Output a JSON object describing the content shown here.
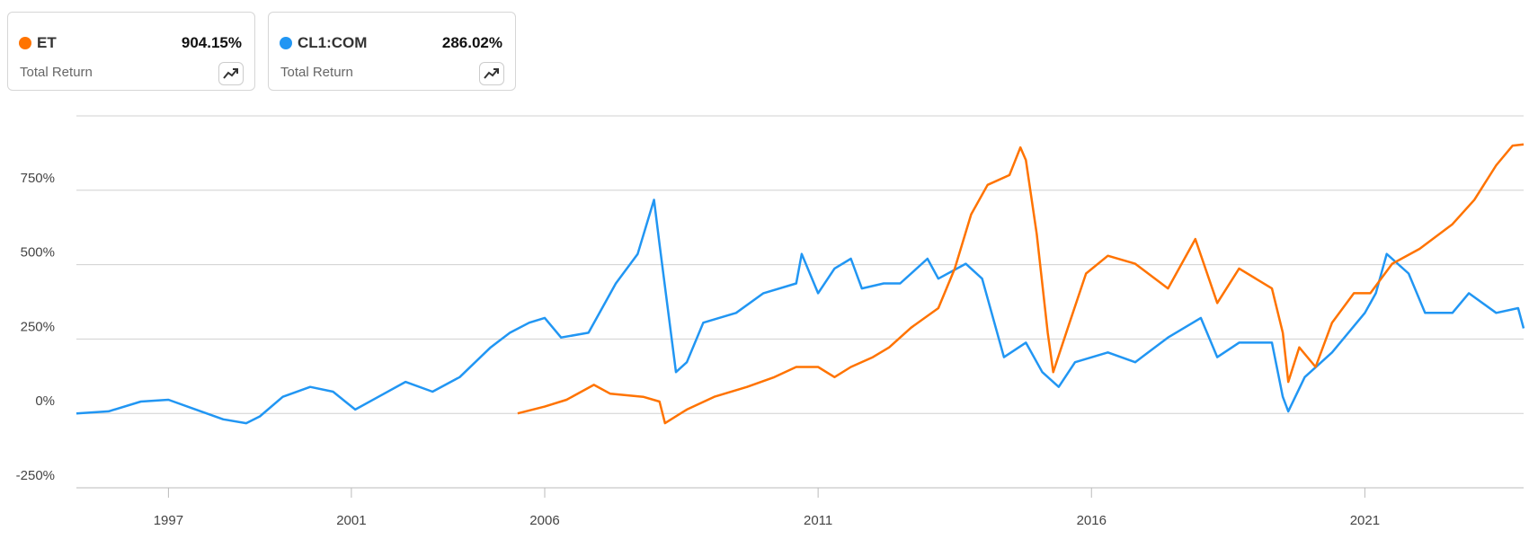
{
  "chart_data": {
    "type": "line",
    "metric_label": "Total Return",
    "xlim": [
      1995.0,
      2023.9
    ],
    "xticks": [
      1997,
      2001,
      2006,
      2011,
      2016,
      2021
    ],
    "ylim": [
      -250,
      1000
    ],
    "yticks": [
      {
        "value": -250,
        "label": "-250%"
      },
      {
        "value": 0,
        "label": "0%"
      },
      {
        "value": 250,
        "label": "250%"
      },
      {
        "value": 500,
        "label": "500%"
      },
      {
        "value": 750,
        "label": "750%"
      }
    ],
    "grid": true,
    "series": [
      {
        "name": "ET",
        "color": "#ff7300",
        "total_return": {
          "value": 904.15,
          "label": "904.15%"
        },
        "x": [
          2005.3,
          2006.0,
          2006.4,
          2006.9,
          2007.2,
          2007.8,
          2008.1,
          2008.2,
          2008.6,
          2009.1,
          2009.7,
          2010.2,
          2010.6,
          2011.0,
          2011.3,
          2011.6,
          2012.0,
          2012.3,
          2012.7,
          2013.2,
          2013.5,
          2013.8,
          2014.1,
          2014.5,
          2014.7,
          2014.8,
          2015.0,
          2015.2,
          2015.3,
          2015.6,
          2015.9,
          2016.3,
          2016.8,
          2017.4,
          2017.9,
          2018.3,
          2018.7,
          2019.3,
          2019.5,
          2019.6,
          2019.8,
          2020.1,
          2020.4,
          2020.8,
          2021.1,
          2021.5,
          2022.0,
          2022.6,
          2023.0,
          2023.4,
          2023.7,
          2023.9
        ],
        "values": [
          0,
          23,
          46,
          96,
          66,
          56,
          40,
          -33,
          13,
          56,
          89,
          122,
          156,
          156,
          122,
          156,
          189,
          222,
          288,
          354,
          487,
          669,
          768,
          801,
          894,
          851,
          602,
          271,
          139,
          305,
          470,
          530,
          503,
          420,
          586,
          371,
          487,
          420,
          271,
          106,
          222,
          156,
          305,
          404,
          404,
          503,
          553,
          636,
          718,
          834,
          900,
          904.15
        ]
      },
      {
        "name": "CL1:COM",
        "color": "#2196f3",
        "total_return": {
          "value": 286.02,
          "label": "286.02%"
        },
        "x": [
          1995.0,
          1995.7,
          1996.4,
          1997.0,
          1997.6,
          1998.2,
          1998.7,
          1999.0,
          1999.5,
          2000.1,
          2000.6,
          2001.1,
          2001.7,
          2002.4,
          2003.1,
          2003.8,
          2004.6,
          2005.1,
          2005.6,
          2006.0,
          2006.3,
          2006.8,
          2007.3,
          2007.7,
          2008.0,
          2008.1,
          2008.4,
          2008.6,
          2008.9,
          2009.5,
          2010.0,
          2010.6,
          2010.7,
          2011.0,
          2011.3,
          2011.6,
          2011.8,
          2012.2,
          2012.5,
          2013.0,
          2013.2,
          2013.7,
          2014.0,
          2014.4,
          2014.8,
          2015.1,
          2015.4,
          2015.7,
          2016.3,
          2016.8,
          2017.4,
          2018.0,
          2018.3,
          2018.7,
          2019.3,
          2019.5,
          2019.6,
          2019.9,
          2020.4,
          2021.0,
          2021.2,
          2021.4,
          2021.8,
          2022.1,
          2022.6,
          2022.9,
          2023.4,
          2023.8,
          2023.9
        ],
        "values": [
          0,
          7,
          40,
          46,
          13,
          -20,
          -33,
          -10,
          56,
          89,
          73,
          13,
          56,
          106,
          73,
          122,
          222,
          271,
          305,
          321,
          255,
          271,
          437,
          536,
          718,
          569,
          139,
          172,
          305,
          338,
          404,
          437,
          536,
          404,
          487,
          520,
          420,
          437,
          437,
          520,
          453,
          503,
          453,
          189,
          238,
          139,
          89,
          172,
          205,
          172,
          255,
          321,
          189,
          238,
          238,
          56,
          7,
          122,
          205,
          338,
          404,
          536,
          470,
          338,
          338,
          404,
          338,
          354,
          286.02
        ]
      }
    ]
  }
}
